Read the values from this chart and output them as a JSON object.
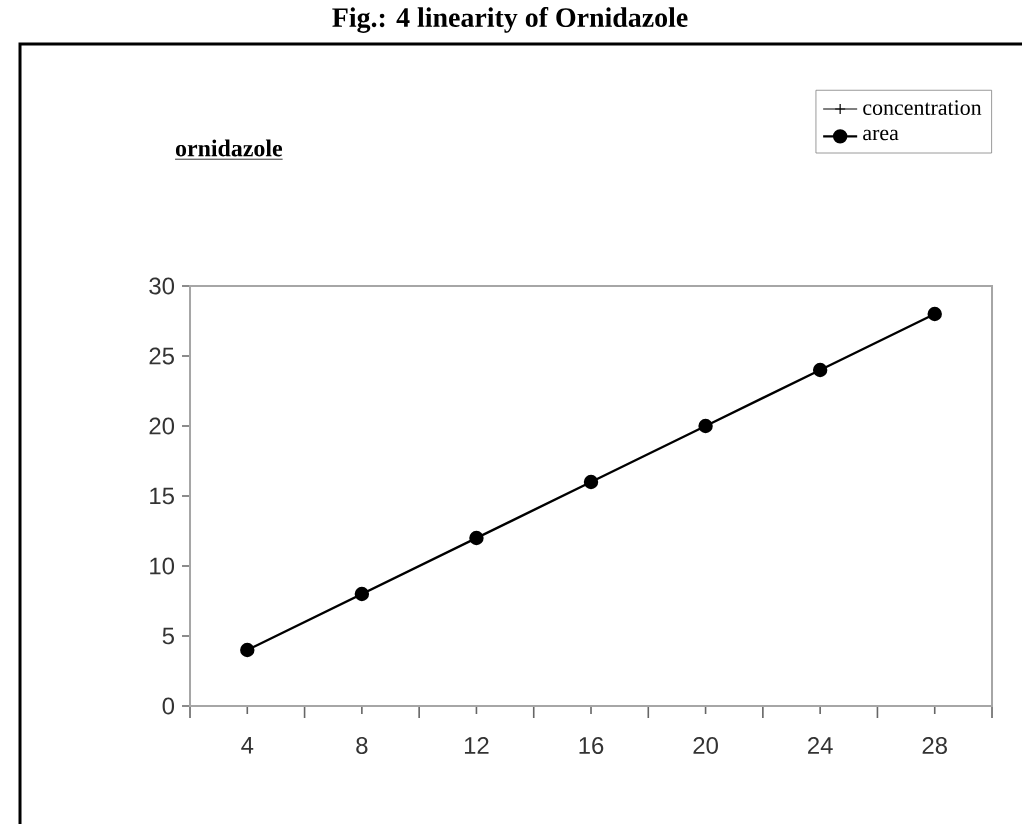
{
  "chart_data": {
    "type": "line",
    "title": "Fig.: 4 linearity of Ornidazole",
    "subtitle": "ornidazole",
    "categories": [
      "4",
      "8",
      "12",
      "16",
      "20",
      "24",
      "28"
    ],
    "series": [
      {
        "name": "concentration",
        "color": "#000000",
        "marker": "cross",
        "values": [
          null,
          null,
          null,
          null,
          null,
          null,
          null
        ]
      },
      {
        "name": "area",
        "color": "#000000",
        "marker": "circle",
        "values": [
          4,
          8,
          12,
          16,
          20,
          24,
          28
        ]
      }
    ],
    "ylim": [
      0,
      30
    ],
    "yticks": [
      0,
      5,
      10,
      15,
      20,
      25,
      30
    ],
    "grid": false,
    "legend": "top right",
    "line_style": "solid"
  }
}
